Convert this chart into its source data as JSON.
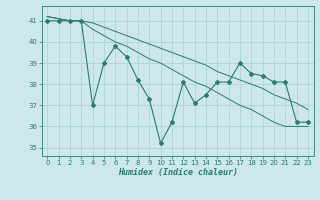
{
  "x": [
    0,
    1,
    2,
    3,
    4,
    5,
    6,
    7,
    8,
    9,
    10,
    11,
    12,
    13,
    14,
    15,
    16,
    17,
    18,
    19,
    20,
    21,
    22,
    23
  ],
  "y_line": [
    41.0,
    41.0,
    41.0,
    41.0,
    37.0,
    39.0,
    39.8,
    39.3,
    38.2,
    37.3,
    35.2,
    36.2,
    38.1,
    37.1,
    37.5,
    38.1,
    38.1,
    39.0,
    38.5,
    38.4,
    38.1,
    38.1,
    36.2,
    36.2
  ],
  "y_trend_top": [
    41.2,
    41.1,
    41.0,
    41.0,
    40.6,
    40.3,
    40.0,
    39.8,
    39.5,
    39.2,
    39.0,
    38.7,
    38.4,
    38.1,
    37.9,
    37.6,
    37.3,
    37.0,
    36.8,
    36.5,
    36.2,
    36.0,
    36.0,
    36.0
  ],
  "y_trend_bot": [
    41.2,
    41.1,
    41.0,
    41.0,
    40.9,
    40.7,
    40.5,
    40.3,
    40.1,
    39.9,
    39.7,
    39.5,
    39.3,
    39.1,
    38.9,
    38.6,
    38.4,
    38.2,
    38.0,
    37.8,
    37.5,
    37.3,
    37.1,
    36.8
  ],
  "color": "#2d7a6e",
  "bg_color": "#cce8ec",
  "grid_color": "#aacfd4",
  "xlabel": "Humidex (Indice chaleur)",
  "ylim": [
    34.6,
    41.7
  ],
  "xlim": [
    -0.5,
    23.5
  ],
  "yticks": [
    35,
    36,
    37,
    38,
    39,
    40,
    41
  ],
  "xticks": [
    0,
    1,
    2,
    3,
    4,
    5,
    6,
    7,
    8,
    9,
    10,
    11,
    12,
    13,
    14,
    15,
    16,
    17,
    18,
    19,
    20,
    21,
    22,
    23
  ]
}
